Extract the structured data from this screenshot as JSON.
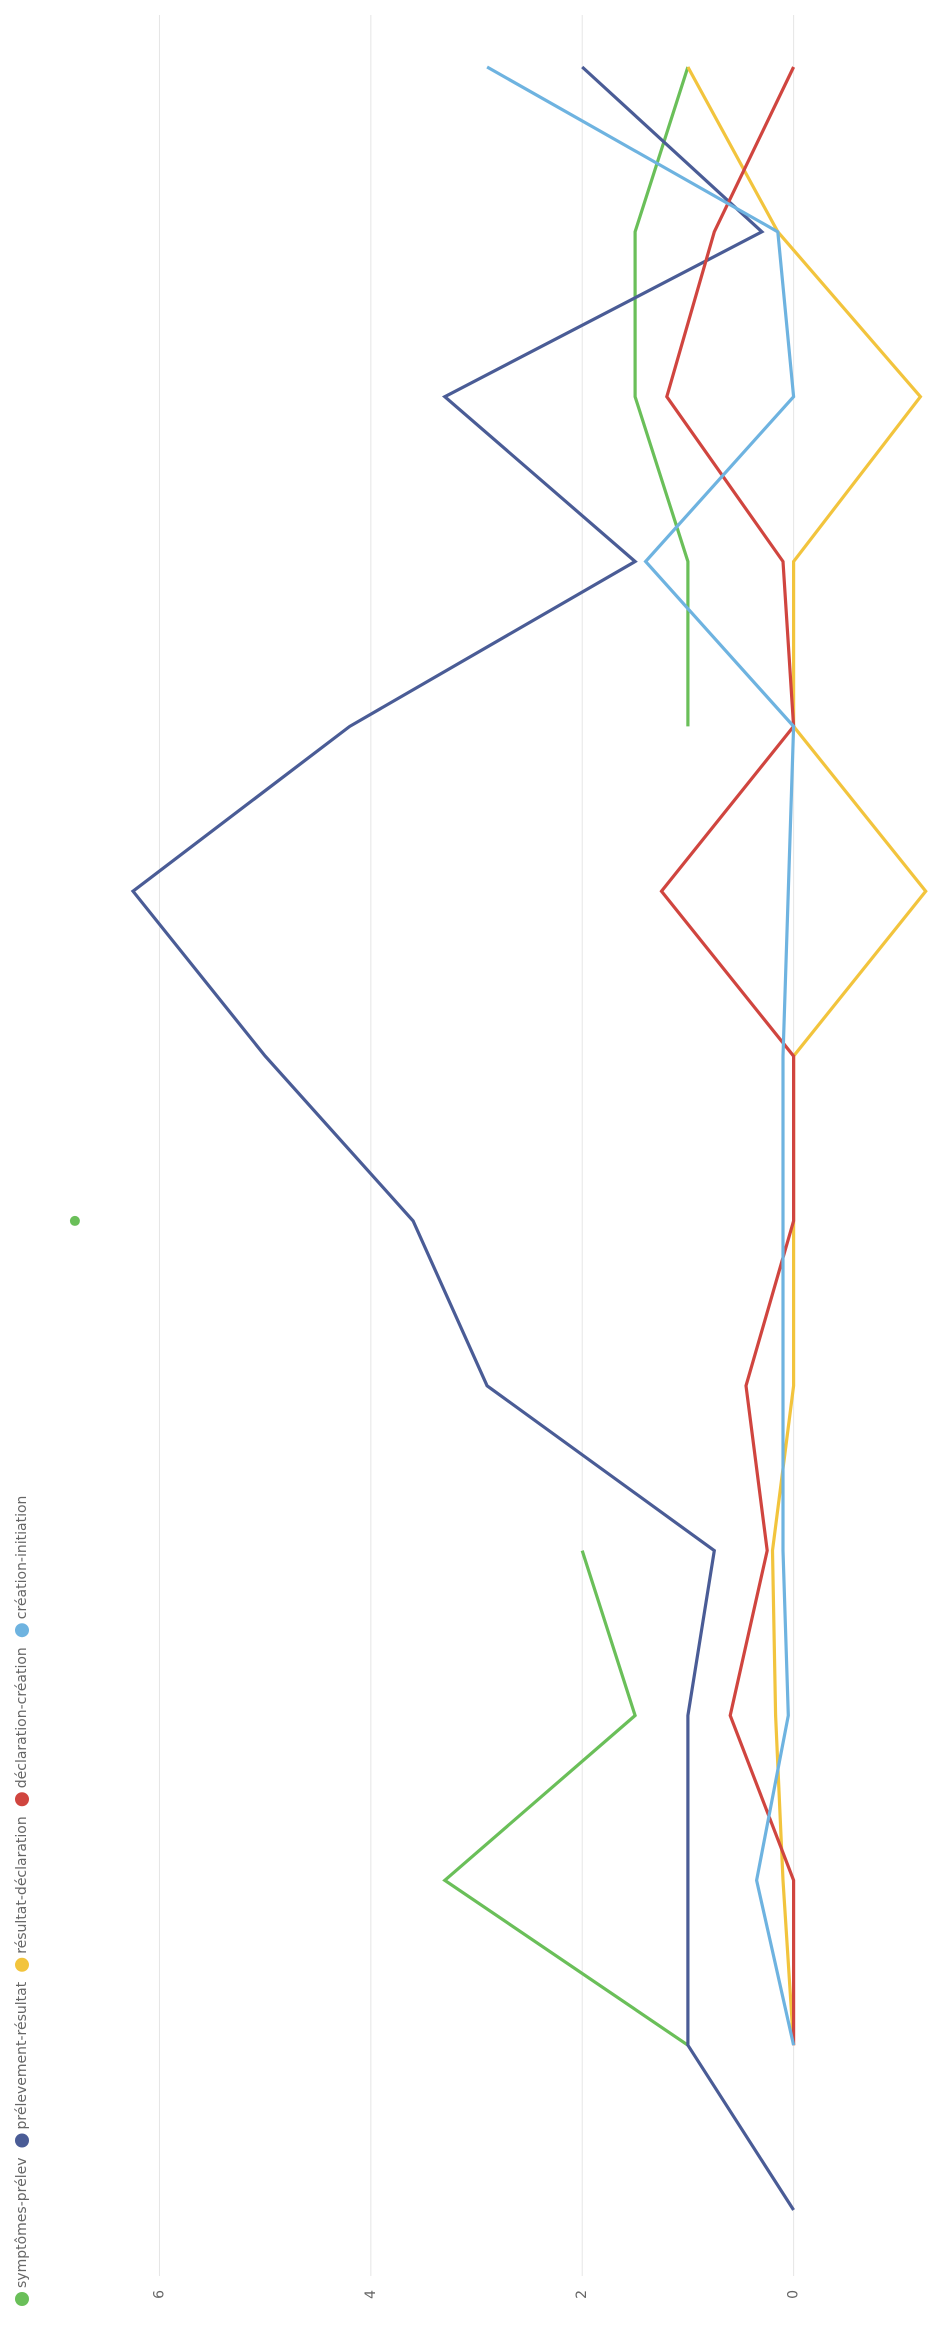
{
  "chart_data": {
    "type": "line",
    "categories": [
      null,
      null,
      null,
      null,
      null,
      null,
      null,
      null,
      null,
      null,
      null,
      null,
      null,
      null
    ],
    "series": [
      {
        "name": "symptômes-prélev",
        "color": "#6abf59",
        "values": [
          null,
          1,
          3.3,
          1.5,
          2,
          null,
          6.8,
          null,
          null,
          1,
          1,
          1.5,
          1.5,
          1
        ]
      },
      {
        "name": "prélevement-résultat",
        "color": "#4a5c96",
        "values": [
          0,
          1,
          1,
          1,
          0.75,
          2.9,
          3.6,
          5,
          6.25,
          4.2,
          1.5,
          3.3,
          0.3,
          2
        ]
      },
      {
        "name": "résultat-déclaration",
        "color": "#f2c43d",
        "values": [
          null,
          0,
          0.1,
          0.17,
          0.2,
          0,
          0,
          0,
          -1.25,
          0,
          0,
          -1.2,
          0.15,
          1
        ]
      },
      {
        "name": "déclaration-création",
        "color": "#d0453f",
        "values": [
          null,
          0,
          0,
          0.6,
          0.25,
          0.45,
          0,
          0,
          1.25,
          0,
          0.1,
          1.2,
          0.75,
          0
        ]
      },
      {
        "name": "création-initiation",
        "color": "#6eb3e0",
        "values": [
          null,
          0,
          0.35,
          0.05,
          0.1,
          0.1,
          0.1,
          0.1,
          0.05,
          0,
          1.4,
          0,
          0.15,
          2.9
        ]
      }
    ],
    "ylim": [
      -1.3,
      7.4
    ],
    "yticks": [
      0,
      2,
      4,
      6
    ],
    "grid": true,
    "legend": "top-left"
  }
}
